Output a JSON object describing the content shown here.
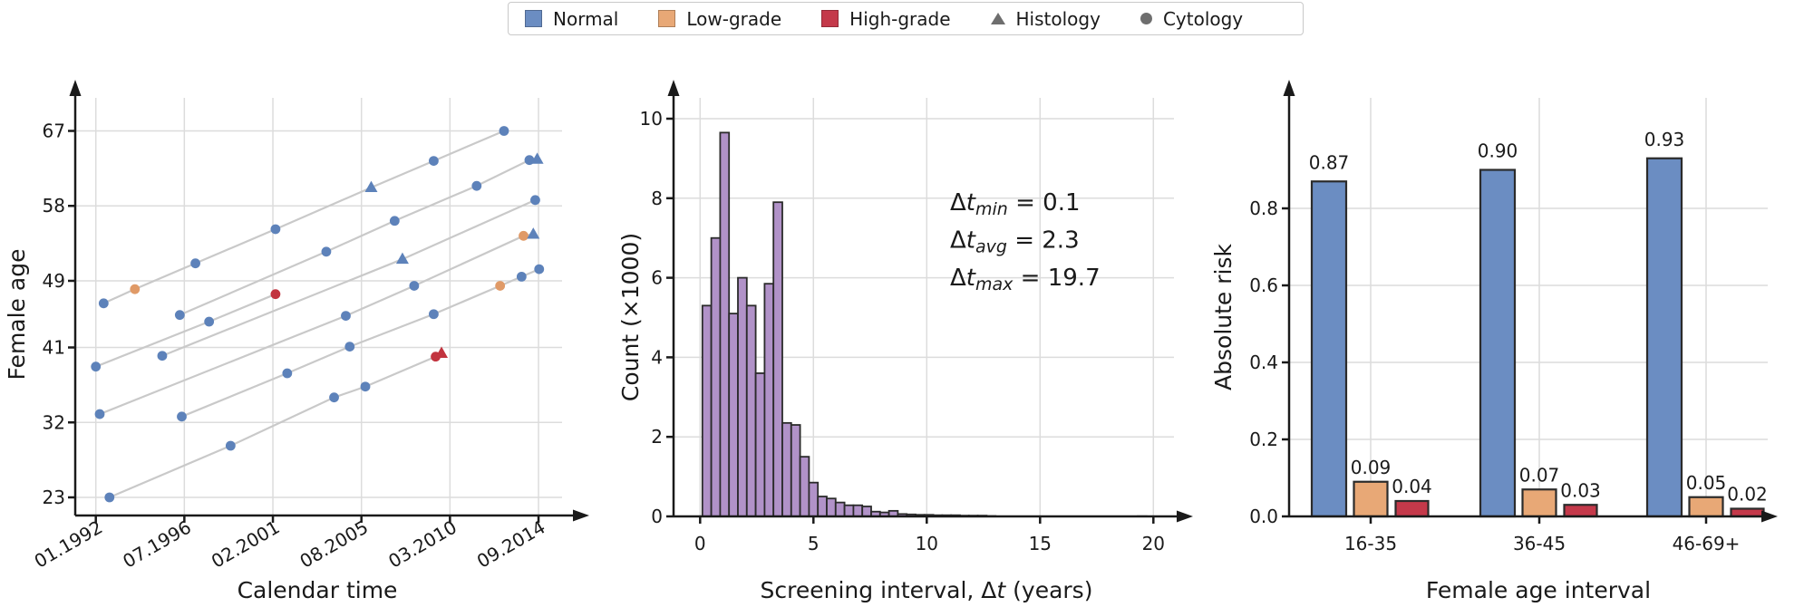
{
  "legend": {
    "items": [
      {
        "label": "Normal",
        "marker": "square",
        "color": "#6b8dc2"
      },
      {
        "label": "Low-grade",
        "marker": "square",
        "color": "#e8a876"
      },
      {
        "label": "High-grade",
        "marker": "square",
        "color": "#c4394a"
      },
      {
        "label": "Histology",
        "marker": "triangle",
        "color": "#6e6e6e"
      },
      {
        "label": "Cytology",
        "marker": "circle",
        "color": "#6e6e6e"
      }
    ]
  },
  "chart_data": [
    {
      "id": "screening-histories",
      "type": "scatter",
      "xlabel": "Calendar time",
      "ylabel": "Female age",
      "x_ticks": [
        {
          "label": "01.1992",
          "t": 1992.0
        },
        {
          "label": "07.1996",
          "t": 1996.533
        },
        {
          "label": "02.2001",
          "t": 2001.067
        },
        {
          "label": "08.2005",
          "t": 2005.6
        },
        {
          "label": "03.2010",
          "t": 2010.133
        },
        {
          "label": "09.2014",
          "t": 2014.667
        }
      ],
      "y_ticks": [
        23,
        32,
        41,
        49,
        58,
        67
      ],
      "xlim": [
        1991.0,
        2016.5
      ],
      "ylim": [
        20.9,
        69.7
      ],
      "grid": true,
      "colors": {
        "Normal": "#5d82ba",
        "Low-grade": "#e09a67",
        "High-grade": "#c2343f"
      },
      "trajectory_color": "#c9c9c9",
      "lines": [
        {
          "points": [
            {
              "t": 1992.4,
              "age": 46.3,
              "grade": "Normal",
              "test": "Cytology"
            },
            {
              "t": 1994.0,
              "age": 48.0,
              "grade": "Low-grade",
              "test": "Cytology"
            },
            {
              "t": 1997.1,
              "age": 51.1,
              "grade": "Normal",
              "test": "Cytology"
            },
            {
              "t": 2001.2,
              "age": 55.2,
              "grade": "Normal",
              "test": "Cytology"
            },
            {
              "t": 2006.1,
              "age": 60.2,
              "grade": "Normal",
              "test": "Histology"
            },
            {
              "t": 2009.3,
              "age": 63.4,
              "grade": "Normal",
              "test": "Cytology"
            },
            {
              "t": 2012.9,
              "age": 67.0,
              "grade": "Normal",
              "test": "Cytology"
            }
          ]
        },
        {
          "points": [
            {
              "t": 1996.3,
              "age": 44.9,
              "grade": "Normal",
              "test": "Cytology"
            },
            {
              "t": 2003.8,
              "age": 52.5,
              "grade": "Normal",
              "test": "Cytology"
            },
            {
              "t": 2007.3,
              "age": 56.2,
              "grade": "Normal",
              "test": "Cytology"
            },
            {
              "t": 2011.5,
              "age": 60.4,
              "grade": "Normal",
              "test": "Cytology"
            },
            {
              "t": 2014.2,
              "age": 63.5,
              "grade": "Normal",
              "test": "Cytology"
            },
            {
              "t": 2014.6,
              "age": 63.6,
              "grade": "Normal",
              "test": "Histology"
            }
          ]
        },
        {
          "points": [
            {
              "t": 1992.0,
              "age": 38.7,
              "grade": "Normal",
              "test": "Cytology"
            },
            {
              "t": 1997.8,
              "age": 44.1,
              "grade": "Normal",
              "test": "Cytology"
            },
            {
              "t": 2001.2,
              "age": 47.4,
              "grade": "High-grade",
              "test": "Cytology"
            }
          ]
        },
        {
          "points": [
            {
              "t": 1995.4,
              "age": 40.0,
              "grade": "Normal",
              "test": "Cytology"
            },
            {
              "t": 2007.7,
              "age": 51.6,
              "grade": "Normal",
              "test": "Histology"
            },
            {
              "t": 2014.5,
              "age": 58.7,
              "grade": "Normal",
              "test": "Cytology"
            }
          ]
        },
        {
          "points": [
            {
              "t": 1992.2,
              "age": 33.0,
              "grade": "Normal",
              "test": "Cytology"
            },
            {
              "t": 2004.8,
              "age": 44.8,
              "grade": "Normal",
              "test": "Cytology"
            },
            {
              "t": 2008.3,
              "age": 48.4,
              "grade": "Normal",
              "test": "Cytology"
            },
            {
              "t": 2013.9,
              "age": 54.4,
              "grade": "Low-grade",
              "test": "Cytology"
            },
            {
              "t": 2014.4,
              "age": 54.6,
              "grade": "Normal",
              "test": "Histology"
            }
          ]
        },
        {
          "points": [
            {
              "t": 1996.4,
              "age": 32.7,
              "grade": "Normal",
              "test": "Cytology"
            },
            {
              "t": 2001.8,
              "age": 37.9,
              "grade": "Normal",
              "test": "Cytology"
            },
            {
              "t": 2005.0,
              "age": 41.1,
              "grade": "Normal",
              "test": "Cytology"
            },
            {
              "t": 2009.3,
              "age": 45.0,
              "grade": "Normal",
              "test": "Cytology"
            },
            {
              "t": 2012.7,
              "age": 48.4,
              "grade": "Low-grade",
              "test": "Cytology"
            },
            {
              "t": 2013.8,
              "age": 49.5,
              "grade": "Normal",
              "test": "Cytology"
            },
            {
              "t": 2014.7,
              "age": 50.4,
              "grade": "Normal",
              "test": "Cytology"
            }
          ]
        },
        {
          "points": [
            {
              "t": 1992.7,
              "age": 23.0,
              "grade": "Normal",
              "test": "Cytology"
            },
            {
              "t": 1998.9,
              "age": 29.2,
              "grade": "Normal",
              "test": "Cytology"
            },
            {
              "t": 2004.2,
              "age": 35.0,
              "grade": "Normal",
              "test": "Cytology"
            },
            {
              "t": 2005.8,
              "age": 36.3,
              "grade": "Normal",
              "test": "Cytology"
            },
            {
              "t": 2009.4,
              "age": 39.9,
              "grade": "High-grade",
              "test": "Cytology"
            },
            {
              "t": 2009.7,
              "age": 40.3,
              "grade": "High-grade",
              "test": "Histology"
            }
          ]
        }
      ]
    },
    {
      "id": "interval-histogram",
      "type": "bar",
      "xlabel_parts": {
        "pre": "Screening interval, Δ",
        "italic": "t",
        "post": " (years)"
      },
      "ylabel": "Count (×1000)",
      "x_ticks": [
        0,
        5,
        10,
        15,
        20
      ],
      "y_ticks": [
        0,
        2,
        4,
        6,
        8,
        10
      ],
      "xlim": [
        -1.2,
        21.7
      ],
      "ylim": [
        0,
        10.6
      ],
      "grid": true,
      "bar_color": "#b192c8",
      "bar_edge_color": "#2b2b2b",
      "bin_start": 0.1,
      "bin_width": 0.392,
      "values": [
        5.3,
        7.0,
        9.65,
        5.1,
        6.0,
        5.3,
        3.6,
        5.85,
        7.9,
        2.35,
        2.3,
        1.5,
        0.85,
        0.5,
        0.45,
        0.35,
        0.28,
        0.28,
        0.25,
        0.12,
        0.1,
        0.14,
        0.06,
        0.05,
        0.04,
        0.04,
        0.03,
        0.03,
        0.03,
        0.02,
        0.02,
        0.02,
        0.01,
        0,
        0,
        0,
        0,
        0,
        0,
        0,
        0,
        0,
        0,
        0,
        0,
        0,
        0,
        0,
        0,
        0.005
      ],
      "annotations": [
        {
          "prefix": "Δ",
          "symbol": "t",
          "sub": "min",
          "rhs": " = 0.1"
        },
        {
          "prefix": "Δ",
          "symbol": "t",
          "sub": "avg",
          "rhs": " = 2.3"
        },
        {
          "prefix": "Δ",
          "symbol": "t",
          "sub": "max",
          "rhs": " = 19.7"
        }
      ]
    },
    {
      "id": "absolute-risk",
      "type": "bar",
      "xlabel": "Female age interval",
      "ylabel": "Absolute risk",
      "categories": [
        "16-35",
        "36-45",
        "46-69+"
      ],
      "y_ticks": [
        0.0,
        0.2,
        0.4,
        0.6,
        0.8
      ],
      "ylim": [
        0,
        0.97
      ],
      "grid": true,
      "bar_edge_color": "#2b2b2b",
      "series": [
        {
          "name": "Normal",
          "color": "#6b8dc2",
          "values": [
            0.87,
            0.9,
            0.93
          ],
          "labels": [
            "0.87",
            "0.90",
            "0.93"
          ]
        },
        {
          "name": "Low-grade",
          "color": "#e8a876",
          "values": [
            0.09,
            0.07,
            0.05
          ],
          "labels": [
            "0.09",
            "0.07",
            "0.05"
          ]
        },
        {
          "name": "High-grade",
          "color": "#c4394a",
          "values": [
            0.04,
            0.03,
            0.02
          ],
          "labels": [
            "0.04",
            "0.03",
            "0.02"
          ]
        }
      ]
    }
  ]
}
